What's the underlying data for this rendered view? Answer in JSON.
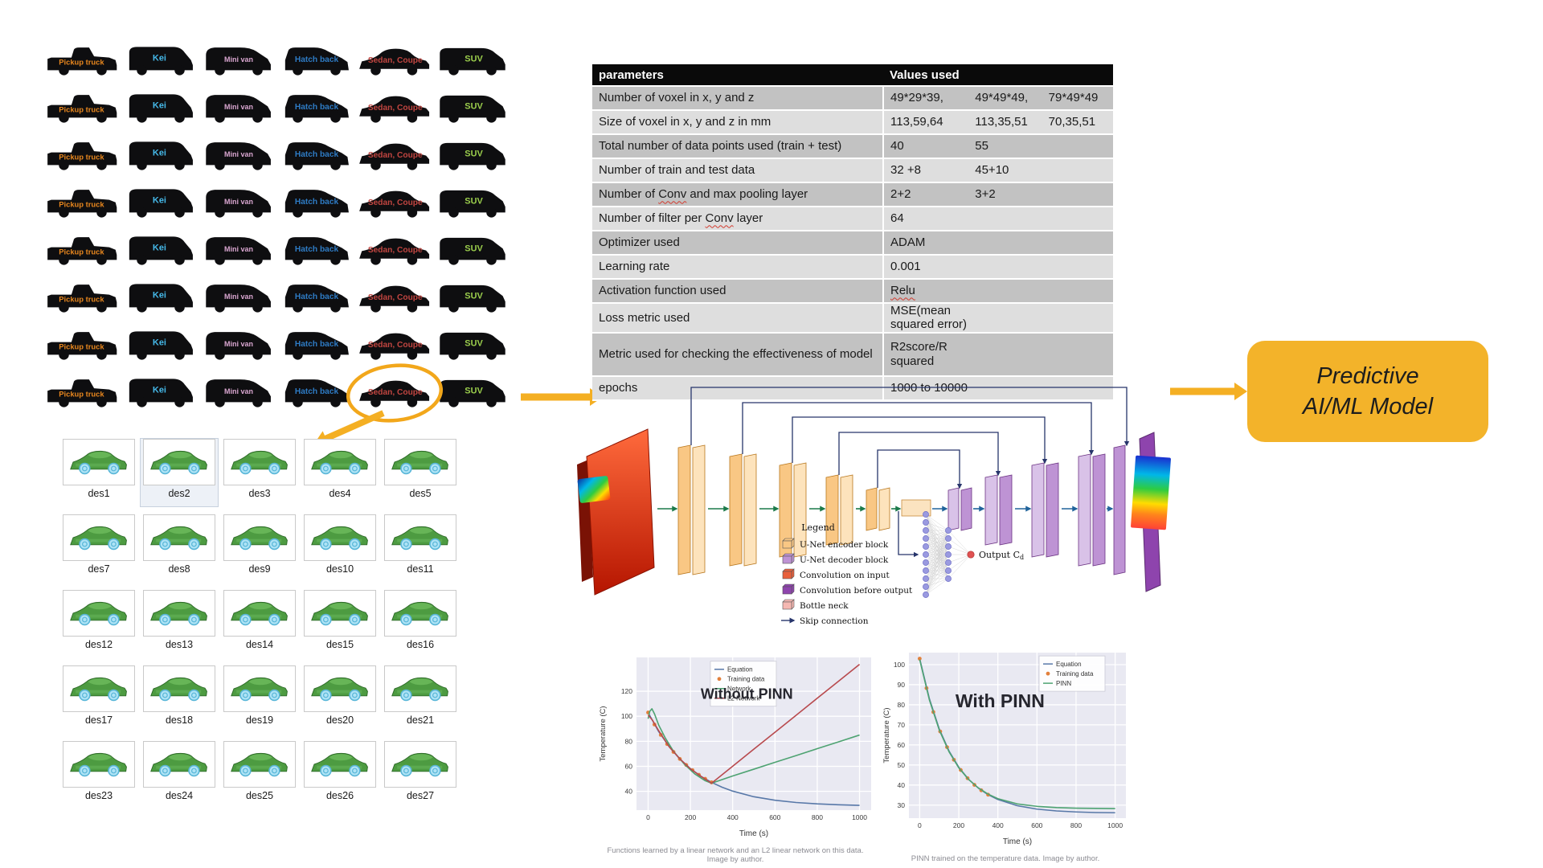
{
  "car_type_grid": {
    "rows": 8,
    "types": [
      {
        "label": "Pickup truck",
        "color": "#E8871E",
        "shape": "pickup",
        "fs": 12,
        "lx": 58,
        "ly": 37
      },
      {
        "label": "Kei",
        "color": "#45B8E8",
        "shape": "kei",
        "fs": 14,
        "lx": 58,
        "ly": 31
      },
      {
        "label": "Mini van",
        "color": "#D9A6D0",
        "shape": "minivan",
        "fs": 11.5,
        "lx": 60,
        "ly": 33
      },
      {
        "label": "Hatch back",
        "color": "#2E7BC4",
        "shape": "hatchback",
        "fs": 13,
        "lx": 60,
        "ly": 33
      },
      {
        "label": "Sedan, Coupe",
        "color": "#C04540",
        "shape": "sedan",
        "fs": 13,
        "lx": 61,
        "ly": 34
      },
      {
        "label": "SUV",
        "color": "#9ACD4C",
        "shape": "suv",
        "fs": 14,
        "lx": 62,
        "ly": 32
      }
    ],
    "highlighted_type": "Sedan, Coupe",
    "highlight_color": "#F2A71B"
  },
  "design_grid": {
    "labels": [
      "des1",
      "des2",
      "des3",
      "des4",
      "des5",
      "des7",
      "des8",
      "des9",
      "des10",
      "des11",
      "des12",
      "des13",
      "des14",
      "des15",
      "des16",
      "des17",
      "des18",
      "des19",
      "des20",
      "des21",
      "des23",
      "des24",
      "des25",
      "des26",
      "des27"
    ],
    "selected": "des2",
    "columns": 5
  },
  "parameters_table": {
    "headers": [
      "parameters",
      "Values used"
    ],
    "spellcheck_words": [
      "Conv",
      "Relu"
    ],
    "rows": [
      {
        "parameter": "Number of voxel in x, y and z",
        "values": [
          "49*29*39,",
          "49*49*49,",
          "79*49*49"
        ]
      },
      {
        "parameter": "Size of voxel in x, y and z in mm",
        "values": [
          "113,59,64",
          "113,35,51",
          "70,35,51"
        ]
      },
      {
        "parameter": "Total number of data points used (train + test)",
        "values": [
          "40",
          "55"
        ]
      },
      {
        "parameter": "Number of train and test data",
        "values": [
          "32 +8",
          "45+10"
        ]
      },
      {
        "parameter": "Number of Conv and max pooling layer",
        "values": [
          "2+2",
          "3+2"
        ]
      },
      {
        "parameter": "Number of filter per Conv layer",
        "values": [
          "64"
        ]
      },
      {
        "parameter": "Optimizer used",
        "values": [
          "ADAM"
        ]
      },
      {
        "parameter": "Learning rate",
        "values": [
          "0.001"
        ]
      },
      {
        "parameter": "Activation function  used",
        "values": [
          "Relu"
        ]
      },
      {
        "parameter": "Loss metric used",
        "values": [
          "MSE(mean squared error)"
        ]
      },
      {
        "parameter": "Metric used for checking the effectiveness of model",
        "values": [
          "R2score/R squared"
        ],
        "tall": true
      },
      {
        "parameter": "epochs",
        "values": [
          "1000 to 10000"
        ]
      }
    ]
  },
  "unet": {
    "legend_title": "Legend",
    "legend_items": [
      {
        "label": "U-Net encoder block",
        "color": "#F9C784",
        "icon": "cube"
      },
      {
        "label": "U-Net decoder block",
        "color": "#BE93D4",
        "icon": "cube"
      },
      {
        "label": "Convolution on input",
        "color": "#E8603C",
        "icon": "cube"
      },
      {
        "label": "Convolution before output",
        "color": "#8E44AD",
        "icon": "cube"
      },
      {
        "label": "Bottle neck",
        "color": "#F5B7B1",
        "icon": "cube"
      },
      {
        "label": "Skip connection",
        "color": "#27356B",
        "icon": "arrow"
      }
    ],
    "output_label": "Output C",
    "output_label_sub": "d"
  },
  "flow": {
    "predictive_line1": "Predictive",
    "predictive_line2": "AI/ML Model",
    "box_color": "#F3B32A",
    "arrow_color": "#F4AF23"
  },
  "captions": {
    "left": "Functions learned by a linear network and an L2 linear network on this data. Image by author.",
    "right": "PINN trained on the temperature data. Image by author."
  },
  "chart_data": [
    {
      "type": "line",
      "name": "without_pinn",
      "annotation": {
        "text": "Without PINN",
        "rx": 0.47,
        "ry": 0.27,
        "size": 18
      },
      "xlabel": "Time (s)",
      "ylabel": "Temperature (C)",
      "xlim": [
        -55,
        1055
      ],
      "ylim": [
        25,
        147
      ],
      "xticks": [
        0,
        200,
        400,
        600,
        800,
        1000
      ],
      "yticks": [
        40,
        60,
        80,
        100,
        120
      ],
      "grid": true,
      "legend": {
        "rx": 0.315,
        "ry": 0.025,
        "w": 82,
        "items": [
          {
            "label": "Equation",
            "color": "#5878a8",
            "marker": "line"
          },
          {
            "label": "Training data",
            "color": "#e2803c",
            "marker": "dot"
          },
          {
            "label": "Network",
            "color": "#4ea372",
            "marker": "line"
          },
          {
            "label": "L2 Network",
            "color": "#b8494d",
            "marker": "line"
          }
        ]
      },
      "series": [
        {
          "name": "Equation",
          "type": "line",
          "color": "#5878a8",
          "x": [
            0,
            50,
            100,
            150,
            200,
            250,
            300,
            350,
            400,
            500,
            600,
            700,
            800,
            900,
            1000
          ],
          "y": [
            103,
            87.7,
            75.6,
            65.9,
            58.2,
            52,
            47.2,
            43.3,
            40.2,
            35.7,
            32.9,
            31.1,
            30,
            29.3,
            28.8
          ]
        },
        {
          "name": "Training data",
          "type": "scatter",
          "color": "#e2803c",
          "x": [
            0,
            30,
            60,
            90,
            120,
            150,
            180,
            210,
            240,
            270,
            300
          ],
          "y": [
            103,
            93.4,
            85.1,
            77.8,
            71.5,
            65.9,
            61.1,
            56.9,
            53.2,
            50,
            47.2
          ]
        },
        {
          "name": "Network",
          "type": "line",
          "color": "#4ea372",
          "x": [
            0,
            8,
            18,
            30,
            50,
            80,
            120,
            170,
            220,
            270,
            300,
            400,
            500,
            600,
            700,
            800,
            900,
            1000
          ],
          "y": [
            98,
            104,
            106,
            102,
            93,
            83,
            72,
            62,
            54,
            48.5,
            46.5,
            52.3,
            57.7,
            63.2,
            68.6,
            74.1,
            79.5,
            85
          ]
        },
        {
          "name": "L2 Network",
          "type": "line",
          "color": "#b8494d",
          "x": [
            0,
            20,
            50,
            100,
            150,
            200,
            250,
            300,
            400,
            500,
            600,
            700,
            800,
            900,
            1000
          ],
          "y": [
            101,
            97,
            88.5,
            75.5,
            66,
            58,
            52,
            46.5,
            60.1,
            73.7,
            87.2,
            100.8,
            114.4,
            127.9,
            141.5
          ]
        }
      ]
    },
    {
      "type": "line",
      "name": "with_pinn",
      "annotation": {
        "text": "With PINN",
        "rx": 0.42,
        "ry": 0.33,
        "size": 23
      },
      "xlabel": "Time (s)",
      "ylabel": "Temperature (C)",
      "xlim": [
        -55,
        1055
      ],
      "ylim": [
        23.5,
        106
      ],
      "xticks": [
        0,
        200,
        400,
        600,
        800,
        1000
      ],
      "yticks": [
        30,
        40,
        50,
        60,
        70,
        80,
        90,
        100
      ],
      "grid": true,
      "legend": {
        "rx": 0.6,
        "ry": 0.02,
        "w": 82,
        "items": [
          {
            "label": "Equation",
            "color": "#5878a8",
            "marker": "line"
          },
          {
            "label": "Training data",
            "color": "#e2803c",
            "marker": "dot"
          },
          {
            "label": "PINN",
            "color": "#4ea372",
            "marker": "line"
          }
        ]
      },
      "series": [
        {
          "name": "Equation",
          "type": "line",
          "color": "#5878a8",
          "x": [
            0,
            50,
            100,
            150,
            200,
            250,
            300,
            350,
            400,
            500,
            600,
            700,
            800,
            900,
            1000
          ],
          "y": [
            103,
            82.9,
            68,
            57,
            48.9,
            42.9,
            38.5,
            35.2,
            32.8,
            29.7,
            28,
            27.1,
            26.6,
            26.3,
            26.2
          ]
        },
        {
          "name": "Training data",
          "type": "scatter",
          "color": "#e2803c",
          "x": [
            0,
            35,
            70,
            105,
            140,
            175,
            210,
            245,
            280,
            315,
            350
          ],
          "y": [
            103,
            88.3,
            76.4,
            66.7,
            58.9,
            52.6,
            47.5,
            43.4,
            40.1,
            37.4,
            35.2
          ]
        },
        {
          "name": "PINN",
          "type": "line",
          "color": "#4ea372",
          "x": [
            0,
            50,
            100,
            150,
            200,
            250,
            300,
            350,
            400,
            500,
            600,
            700,
            800,
            900,
            1000
          ],
          "y": [
            102.5,
            82.3,
            67.5,
            56.6,
            48.6,
            42.8,
            38.6,
            35.5,
            33.2,
            30.6,
            29.4,
            28.8,
            28.5,
            28.4,
            28.3
          ]
        }
      ]
    }
  ]
}
